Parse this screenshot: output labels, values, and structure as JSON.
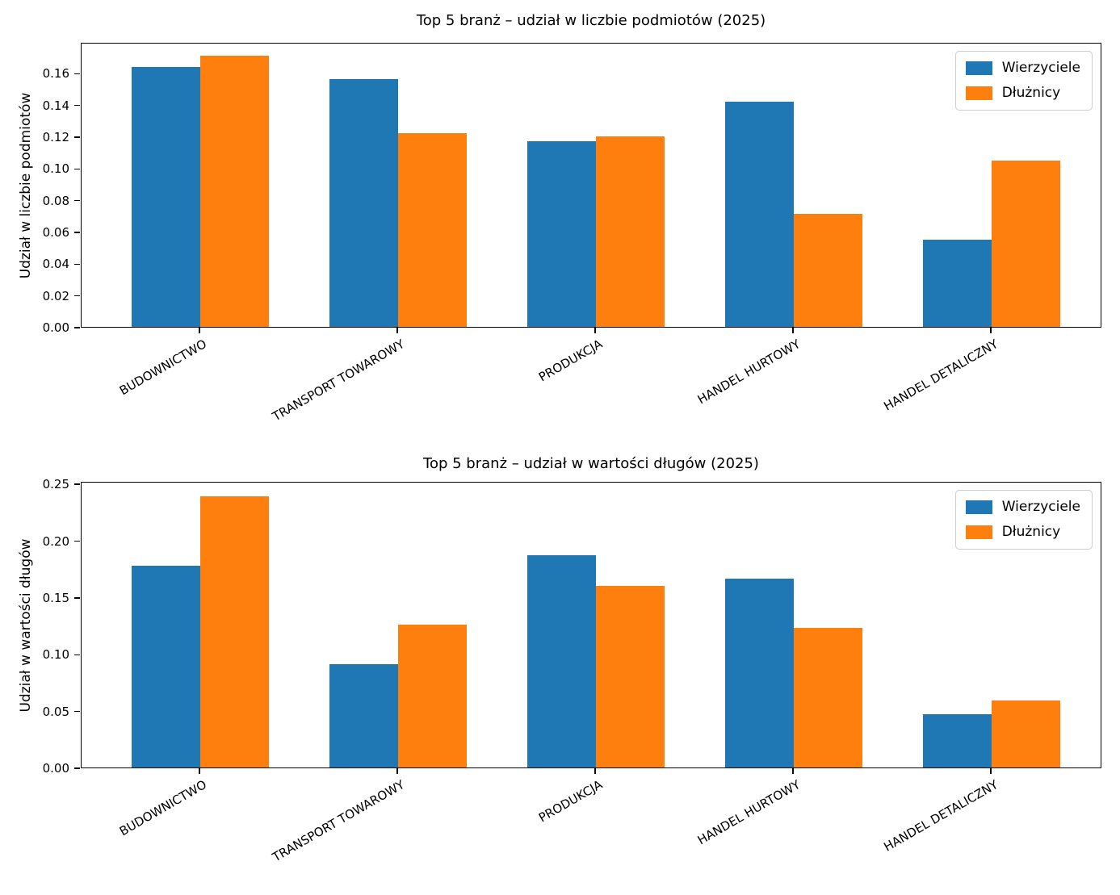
{
  "legend": {
    "items": [
      {
        "label": "Wierzyciele",
        "color": "#1f77b4"
      },
      {
        "label": "Dłużnicy",
        "color": "#ff7f0e"
      }
    ]
  },
  "chart_data": [
    {
      "type": "bar",
      "title": "Top 5 branż – udział w liczbie podmiotów (2025)",
      "xlabel": "",
      "ylabel": "Udział w liczbie podmiotów",
      "categories": [
        "BUDOWNICTWO",
        "TRANSPORT TOWAROWY",
        "PRODUKCJA",
        "HANDEL HURTOWY",
        "HANDEL DETALICZNY"
      ],
      "series": [
        {
          "name": "Wierzyciele",
          "color": "#1f77b4",
          "values": [
            0.164,
            0.156,
            0.117,
            0.142,
            0.055
          ]
        },
        {
          "name": "Dłużnicy",
          "color": "#ff7f0e",
          "values": [
            0.171,
            0.122,
            0.12,
            0.071,
            0.105
          ]
        }
      ],
      "ylim": [
        0,
        0.1795
      ],
      "yticks": [
        "0.00",
        "0.02",
        "0.04",
        "0.06",
        "0.08",
        "0.10",
        "0.12",
        "0.14",
        "0.16"
      ],
      "grid": false,
      "legend_position": "upper right",
      "xtick_rotation": 30
    },
    {
      "type": "bar",
      "title": "Top 5 branż – udział w wartości długów (2025)",
      "xlabel": "",
      "ylabel": "Udział w wartości długów",
      "categories": [
        "BUDOWNICTWO",
        "TRANSPORT TOWAROWY",
        "PRODUKCJA",
        "HANDEL HURTOWY",
        "HANDEL DETALICZNY"
      ],
      "series": [
        {
          "name": "Wierzyciele",
          "color": "#1f77b4",
          "values": [
            0.178,
            0.091,
            0.187,
            0.166,
            0.047
          ]
        },
        {
          "name": "Dłużnicy",
          "color": "#ff7f0e",
          "values": [
            0.239,
            0.126,
            0.16,
            0.123,
            0.059
          ]
        }
      ],
      "ylim": [
        0,
        0.2523
      ],
      "yticks": [
        "0.00",
        "0.05",
        "0.10",
        "0.15",
        "0.20",
        "0.25"
      ],
      "grid": false,
      "legend_position": "upper right",
      "xtick_rotation": 30
    }
  ]
}
